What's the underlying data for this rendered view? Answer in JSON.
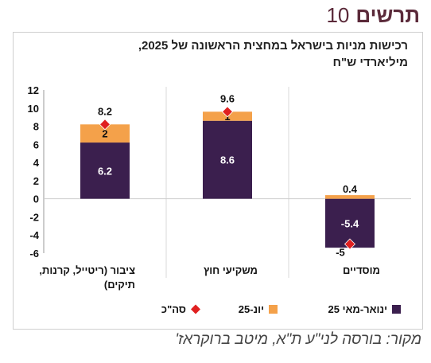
{
  "header": {
    "word": "תרשים",
    "number": "10"
  },
  "source": "מקור: בורסה לני\"ע ת\"א, מיטב ברוקראז'",
  "colors": {
    "jan_may": "#3b1f4e",
    "june": "#f4a14a",
    "total": "#e02020"
  },
  "chart_data": {
    "type": "bar",
    "stacked": true,
    "title_lines": [
      "רכישות מניות בישראל במחצית הראשונה של 2025,",
      "מיליארדי ש\"ח"
    ],
    "categories": [
      [
        "ציבור (ריטייל, קרנות,",
        "תיקים)"
      ],
      [
        "משקיעי חוץ"
      ],
      [
        "מוסדיים"
      ]
    ],
    "series": [
      {
        "name": "ינואר-מאי 25",
        "values": [
          6.2,
          8.6,
          -5.4
        ],
        "labels": [
          "6.2",
          "8.6",
          "-5.4"
        ]
      },
      {
        "name": "יונ-25",
        "values": [
          2,
          1,
          0.4
        ],
        "labels": [
          "2",
          "1",
          "0.4"
        ]
      }
    ],
    "total": {
      "name": "סה\"כ",
      "values": [
        8.2,
        9.6,
        -5
      ],
      "labels": [
        "8.2",
        "9.6",
        "-5"
      ]
    },
    "ylim": [
      -6,
      12
    ],
    "yticks": [
      -6,
      -4,
      -2,
      0,
      2,
      4,
      6,
      8,
      10,
      12
    ],
    "grid": false,
    "legend_position": "bottom"
  }
}
